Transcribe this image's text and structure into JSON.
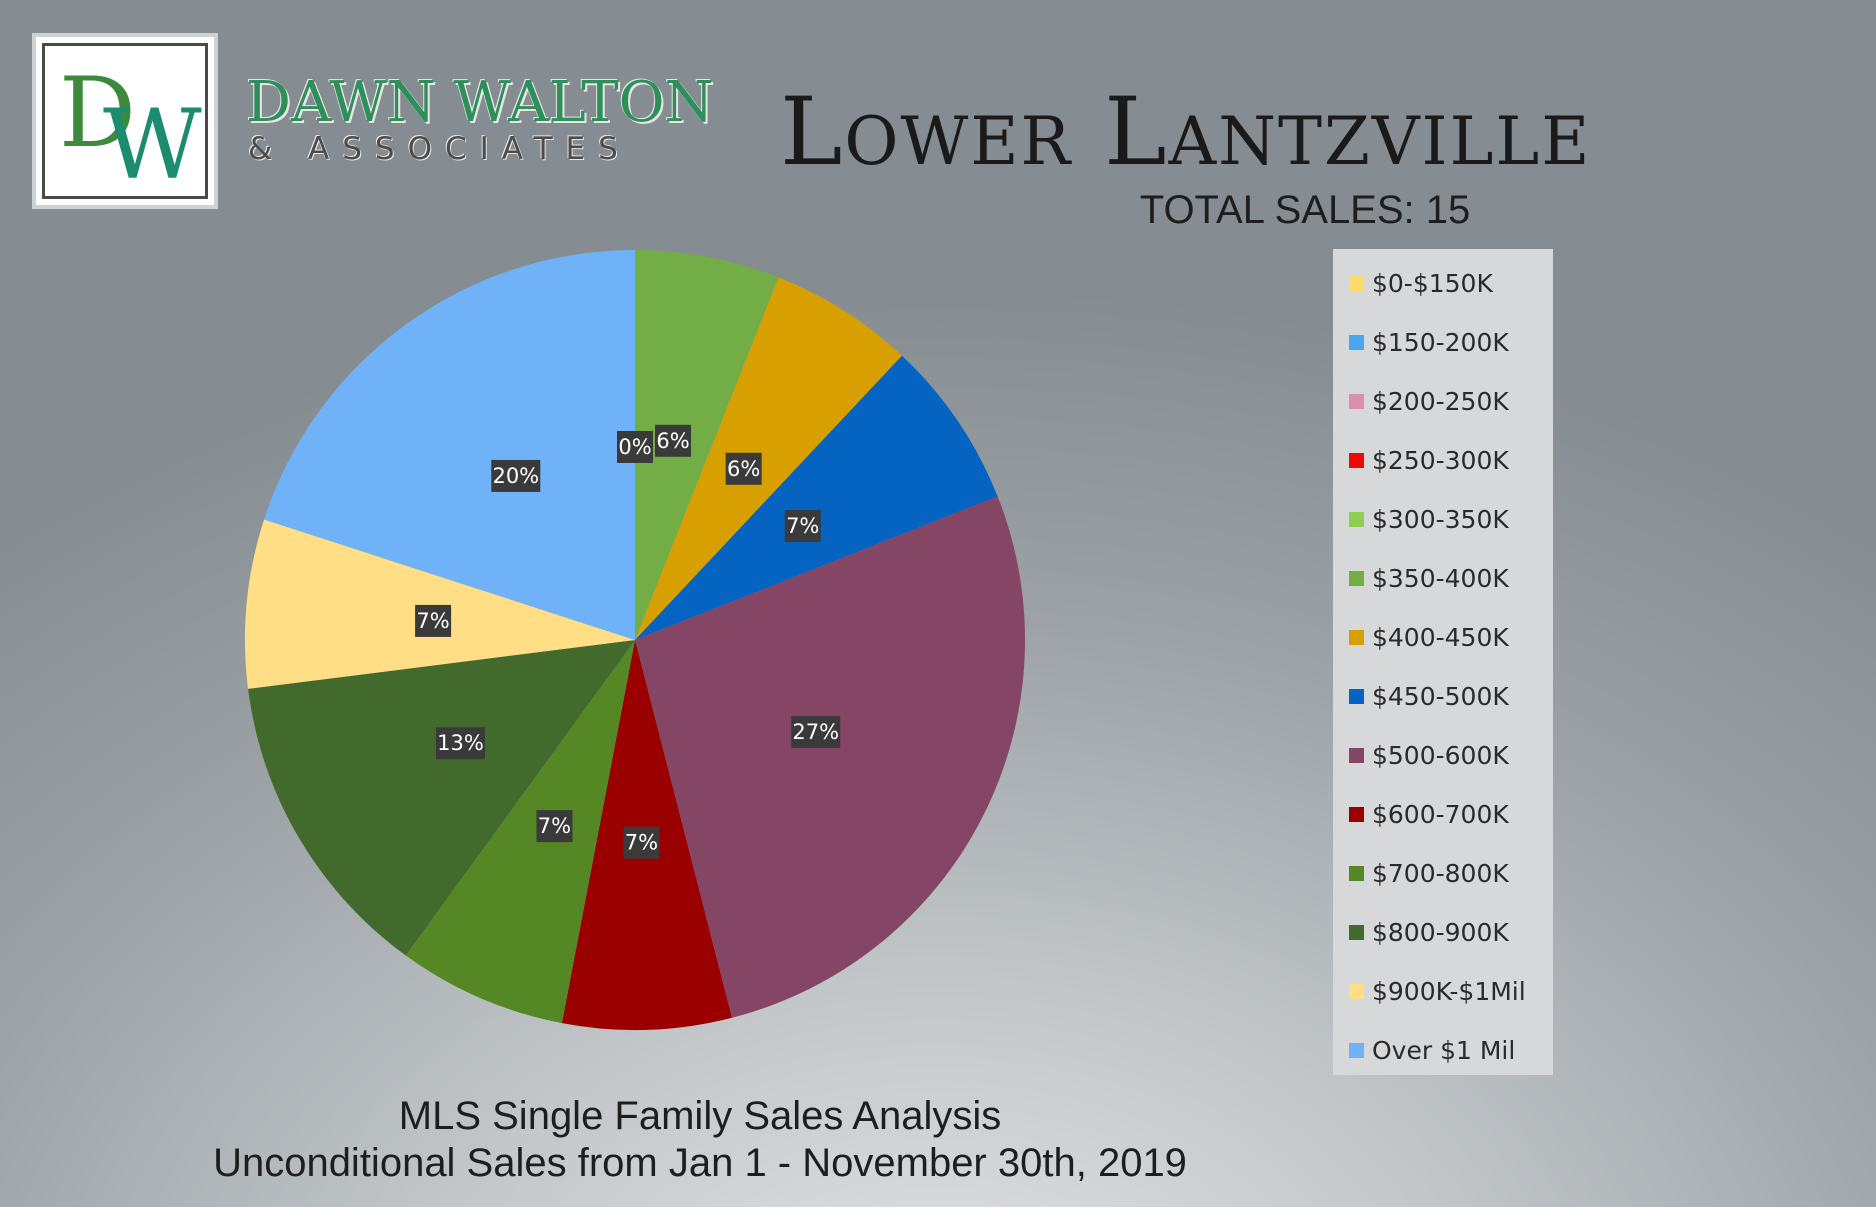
{
  "brand": {
    "logo_monogram": "DW",
    "name": "DAWN WALTON",
    "subtitle": "& ASSOCIATES"
  },
  "header": {
    "title": "Lower Lantzville",
    "total_sales": "TOTAL SALES: 15"
  },
  "footer": {
    "line1": "MLS Single Family Sales Analysis",
    "line2": "Unconditional Sales from Jan 1 - November 30th, 2019"
  },
  "chart_data": {
    "type": "pie",
    "title": "",
    "legend_position": "right",
    "slices": [
      {
        "name": "$0-$150K",
        "value": 0,
        "label": "0%",
        "color": "#ffdb6e",
        "show_label": false
      },
      {
        "name": "$150-200K",
        "value": 0,
        "label": "0%",
        "color": "#4aa6f2",
        "show_label": false
      },
      {
        "name": "$200-250K",
        "value": 0,
        "label": "0%",
        "color": "#d990a8",
        "show_label": false
      },
      {
        "name": "$250-300K",
        "value": 0,
        "label": "0%",
        "color": "#f00808",
        "show_label": false
      },
      {
        "name": "$300-350K",
        "value": 0,
        "label": "0%",
        "color": "#8ccf52",
        "show_label": true
      },
      {
        "name": "$350-400K",
        "value": 6,
        "label": "6%",
        "color": "#72ae45",
        "show_label": true
      },
      {
        "name": "$400-450K",
        "value": 6,
        "label": "6%",
        "color": "#d7a000",
        "show_label": true
      },
      {
        "name": "$450-500K",
        "value": 7,
        "label": "7%",
        "color": "#0563c1",
        "show_label": true
      },
      {
        "name": "$500-600K",
        "value": 27,
        "label": "27%",
        "color": "#854564",
        "show_label": true
      },
      {
        "name": "$600-700K",
        "value": 7,
        "label": "7%",
        "color": "#9b0000",
        "show_label": true
      },
      {
        "name": "$700-800K",
        "value": 7,
        "label": "7%",
        "color": "#558725",
        "show_label": true
      },
      {
        "name": "$800-900K",
        "value": 13,
        "label": "13%",
        "color": "#426a2c",
        "show_label": true
      },
      {
        "name": "$900K-$1Mil",
        "value": 7,
        "label": "7%",
        "color": "#ffde85",
        "show_label": true
      },
      {
        "name": "Over $1 Mil",
        "value": 20,
        "label": "20%",
        "color": "#70b2f7",
        "show_label": true
      }
    ]
  }
}
